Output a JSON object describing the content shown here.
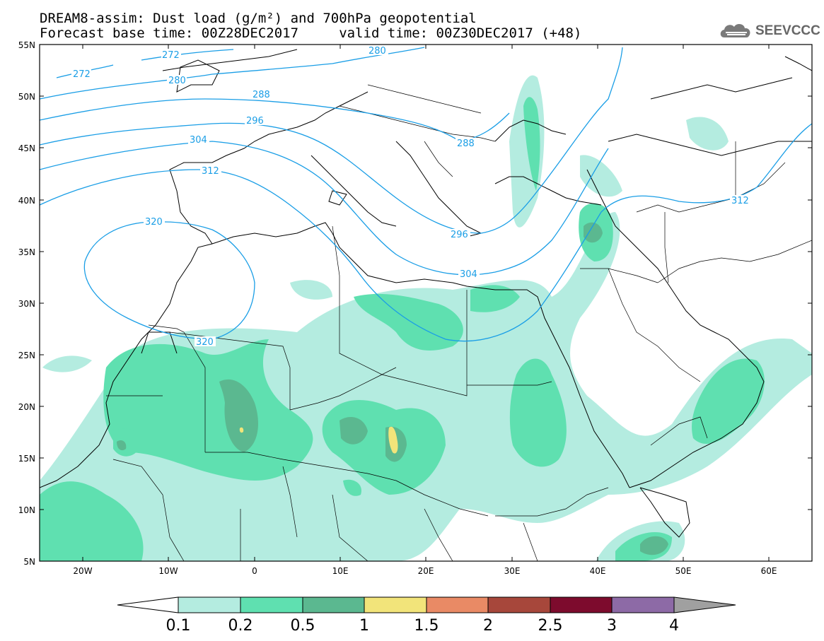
{
  "title_line1": "DREAM8-assim: Dust load (g/m²) and 700hPa geopotential",
  "title_line2": "Forecast base time: 00Z28DEC2017     valid time: 00Z30DEC2017 (+48)",
  "logo_text": "SEEVCCC",
  "lat_ticks": [
    "55N",
    "50N",
    "45N",
    "40N",
    "35N",
    "30N",
    "25N",
    "20N",
    "15N",
    "10N",
    "5N"
  ],
  "lon_ticks": [
    "20W",
    "10W",
    "0",
    "10E",
    "20E",
    "30E",
    "40E",
    "50E",
    "60E"
  ],
  "contour_labels": [
    "272",
    "272",
    "280",
    "280",
    "288",
    "288",
    "296",
    "296",
    "304",
    "304",
    "312",
    "312",
    "320",
    "320"
  ],
  "colorbar": {
    "labels": [
      "0.1",
      "0.2",
      "0.5",
      "1",
      "1.5",
      "2",
      "2.5",
      "3",
      "4"
    ],
    "colors": [
      "#b4ece0",
      "#5fe0b0",
      "#5bb890",
      "#f2e47a",
      "#e98a65",
      "#a7473b",
      "#7d0b2d",
      "#8d6aa6",
      "#a0a0a0"
    ]
  },
  "colors": {
    "contour": "#1a9ee6",
    "coast": "#000000"
  }
}
